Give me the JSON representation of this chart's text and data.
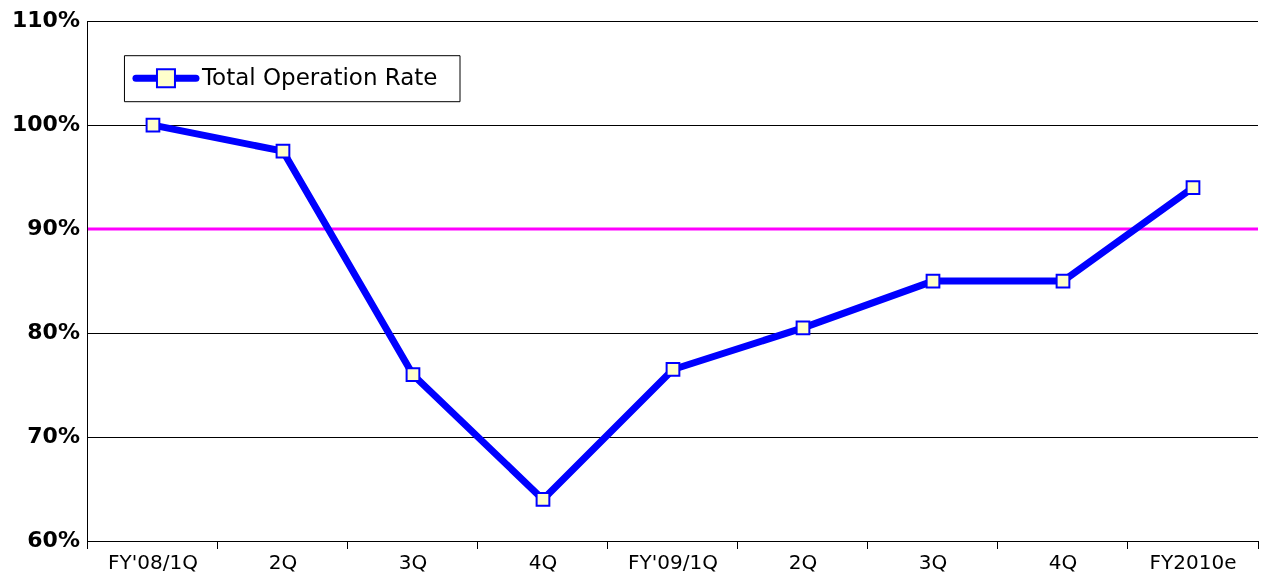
{
  "chart_data": {
    "type": "line",
    "categories": [
      "FY'08/1Q",
      "2Q",
      "3Q",
      "4Q",
      "FY'09/1Q",
      "2Q",
      "3Q",
      "4Q",
      "FY2010e"
    ],
    "series": [
      {
        "name": "Total Operation Rate",
        "color": "#0000ff",
        "values": [
          100,
          97.5,
          76,
          64,
          76.5,
          80.5,
          85,
          85,
          94
        ]
      }
    ],
    "ylim": [
      60,
      110
    ],
    "yticks": [
      {
        "value": 60,
        "label": "60%"
      },
      {
        "value": 70,
        "label": "70%"
      },
      {
        "value": 80,
        "label": "80%"
      },
      {
        "value": 90,
        "label": "90%"
      },
      {
        "value": 100,
        "label": "100%"
      },
      {
        "value": 110,
        "label": "110%"
      }
    ],
    "ref_lines": [
      {
        "axis": "y",
        "value": 90,
        "color": "#ff00ff"
      }
    ],
    "grid": "y",
    "legend": "top left",
    "marker": "square",
    "line_style": "solid"
  }
}
